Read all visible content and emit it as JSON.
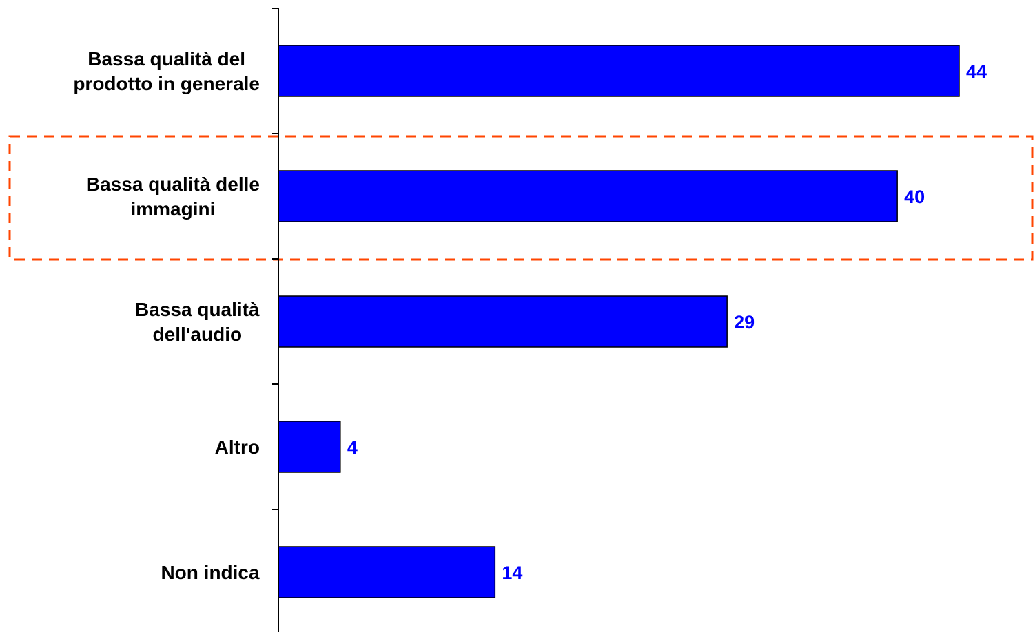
{
  "chart_data": {
    "type": "bar",
    "orientation": "horizontal",
    "categories": [
      [
        "Bassa qualità del",
        "prodotto in generale"
      ],
      [
        "Bassa qualità delle",
        "immagini"
      ],
      [
        "Bassa qualità",
        "dell'audio"
      ],
      [
        "Altro"
      ],
      [
        "Non indica"
      ]
    ],
    "values": [
      44,
      40,
      29,
      4,
      14
    ],
    "value_labels": [
      "44",
      "40",
      "29",
      "4",
      "14"
    ],
    "title": "",
    "xlabel": "",
    "ylabel": "",
    "xlim": [
      0,
      48.9
    ],
    "grid": false,
    "legend": "none",
    "highlighted_category_index": 1,
    "colors": {
      "bar": "#0000FF",
      "bar_border": "#000000",
      "value_label": "#0000FF",
      "highlight_box": "#FF4500",
      "axis": "#000000"
    }
  }
}
